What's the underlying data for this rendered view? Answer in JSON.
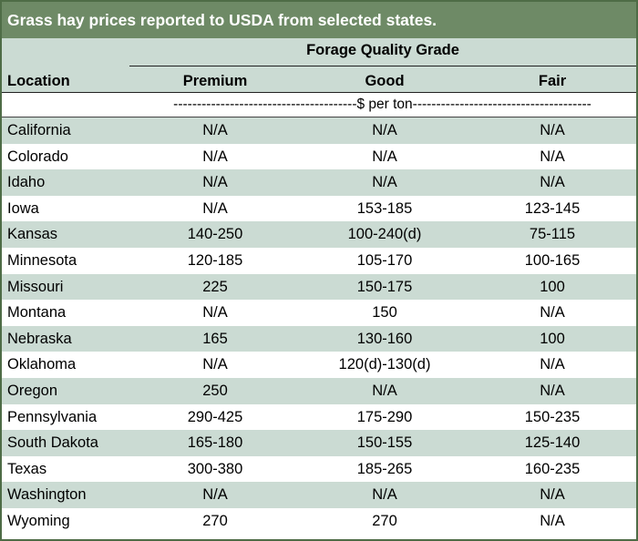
{
  "title": "Grass hay prices reported to USDA from selected states.",
  "header": {
    "group_label": "Forage Quality Grade",
    "location": "Location",
    "columns": [
      "Premium",
      "Good",
      "Fair"
    ]
  },
  "unit_line": "---------------------------------------$ per ton--------------------------------------",
  "rows": [
    {
      "location": "California",
      "premium": "N/A",
      "good": "N/A",
      "fair": "N/A"
    },
    {
      "location": "Colorado",
      "premium": "N/A",
      "good": "N/A",
      "fair": "N/A"
    },
    {
      "location": "Idaho",
      "premium": "N/A",
      "good": "N/A",
      "fair": "N/A"
    },
    {
      "location": "Iowa",
      "premium": "N/A",
      "good": "153-185",
      "fair": "123-145"
    },
    {
      "location": "Kansas",
      "premium": "140-250",
      "good": "100-240(d)",
      "fair": "75-115"
    },
    {
      "location": "Minnesota",
      "premium": "120-185",
      "good": "105-170",
      "fair": "100-165"
    },
    {
      "location": "Missouri",
      "premium": "225",
      "good": "150-175",
      "fair": "100"
    },
    {
      "location": "Montana",
      "premium": "N/A",
      "good": "150",
      "fair": "N/A"
    },
    {
      "location": "Nebraska",
      "premium": "165",
      "good": "130-160",
      "fair": "100"
    },
    {
      "location": "Oklahoma",
      "premium": "N/A",
      "good": "120(d)-130(d)",
      "fair": "N/A"
    },
    {
      "location": "Oregon",
      "premium": "250",
      "good": "N/A",
      "fair": "N/A"
    },
    {
      "location": "Pennsylvania",
      "premium": "290-425",
      "good": "175-290",
      "fair": "150-235"
    },
    {
      "location": "South Dakota",
      "premium": "165-180",
      "good": "150-155",
      "fair": "125-140"
    },
    {
      "location": "Texas",
      "premium": "300-380",
      "good": "185-265",
      "fair": "160-235"
    },
    {
      "location": "Washington",
      "premium": "N/A",
      "good": "N/A",
      "fair": "N/A"
    },
    {
      "location": "Wyoming",
      "premium": "270",
      "good": "270",
      "fair": "N/A"
    }
  ],
  "colors": {
    "title_bg": "#6e8a66",
    "shade": "#cbdbd3",
    "border": "#4e6c46"
  }
}
